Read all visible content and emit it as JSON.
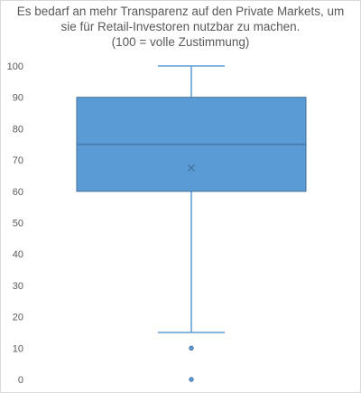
{
  "chart_data": {
    "type": "boxplot",
    "title_lines": [
      "Es bedarf an mehr Transparenz auf den Private Markets, um",
      "sie für Retail-Investoren nutzbar zu machen.",
      "(100 = volle Zustimmung)"
    ],
    "xlabel": "",
    "ylabel": "",
    "ylim": [
      0,
      100
    ],
    "y_ticks": [
      0,
      10,
      20,
      30,
      40,
      50,
      60,
      70,
      80,
      90,
      100
    ],
    "grid": false,
    "legend": "none",
    "series": [
      {
        "min": 15,
        "q1": 60,
        "median": 75,
        "q3": 90,
        "max": 100,
        "mean": 67.5,
        "outliers": [
          10,
          0
        ]
      }
    ],
    "colors": {
      "box_fill": "#5b9bd5",
      "box_stroke": "#41719c",
      "whisker": "#5b9bd5",
      "axis_text": "#595959",
      "frame": "#d9d9d9",
      "mean_marker": "#41719c"
    }
  }
}
